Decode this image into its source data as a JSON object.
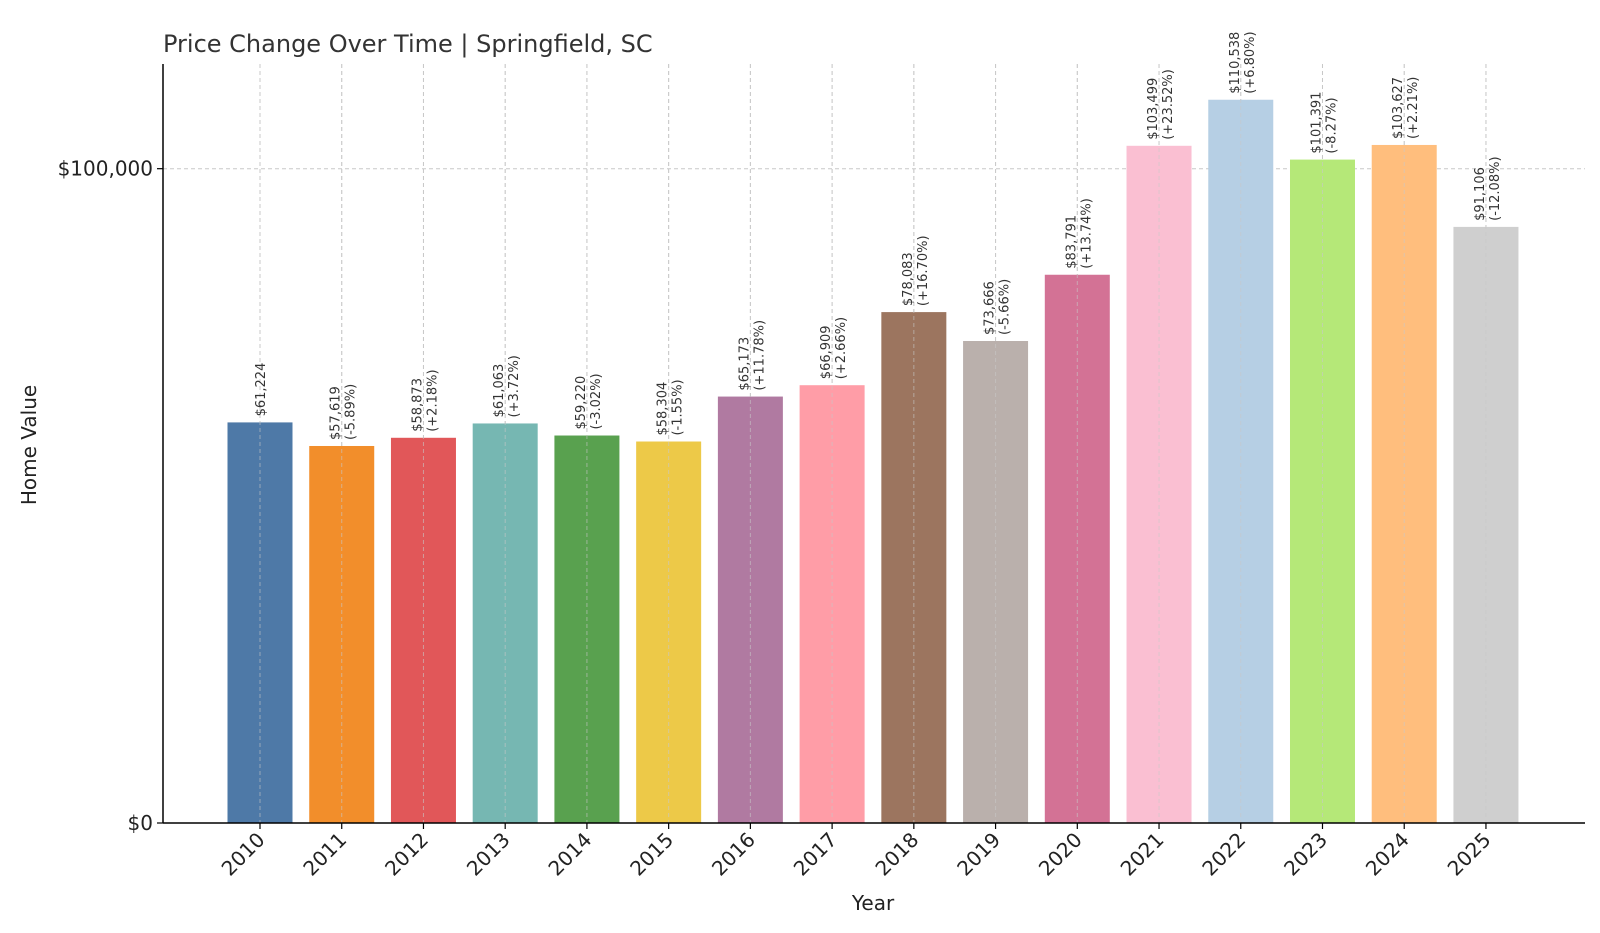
{
  "chart_data": {
    "type": "bar",
    "title": "Price Change Over Time | Springfield, SC",
    "xlabel": "Year",
    "ylabel": "Home Value",
    "ylim": [
      0,
      116000
    ],
    "yticks": [
      {
        "value": 0,
        "label": "$0"
      },
      {
        "value": 100000,
        "label": "$100,000"
      }
    ],
    "grid": true,
    "categories": [
      "2010",
      "2011",
      "2012",
      "2013",
      "2014",
      "2015",
      "2016",
      "2017",
      "2018",
      "2019",
      "2020",
      "2021",
      "2022",
      "2023",
      "2024",
      "2025"
    ],
    "values": [
      61224,
      57619,
      58873,
      61063,
      59220,
      58304,
      65173,
      66909,
      78083,
      73666,
      83791,
      103499,
      110538,
      101391,
      103627,
      91106
    ],
    "value_labels": [
      "$61,224",
      "$57,619",
      "$58,873",
      "$61,063",
      "$59,220",
      "$58,304",
      "$65,173",
      "$66,909",
      "$78,083",
      "$73,666",
      "$83,791",
      "$103,499",
      "$110,538",
      "$101,391",
      "$103,627",
      "$91,106"
    ],
    "change_labels": [
      "",
      "(-5.89%)",
      "(+2.18%)",
      "(+3.72%)",
      "(-3.02%)",
      "(-1.55%)",
      "(+11.78%)",
      "(+2.66%)",
      "(+16.70%)",
      "(-5.66%)",
      "(+13.74%)",
      "(+23.52%)",
      "(+6.80%)",
      "(-8.27%)",
      "(+2.21%)",
      "(-12.08%)"
    ],
    "colors": [
      "#4e79a7",
      "#f28e2b",
      "#e15759",
      "#76b7b2",
      "#59a14f",
      "#edc948",
      "#b07aa1",
      "#ff9da7",
      "#9c755f",
      "#bab0ac",
      "#d37295",
      "#fabfd2",
      "#b6cfe4",
      "#b5e878",
      "#ffbe7d",
      "#cfcfcf"
    ]
  }
}
